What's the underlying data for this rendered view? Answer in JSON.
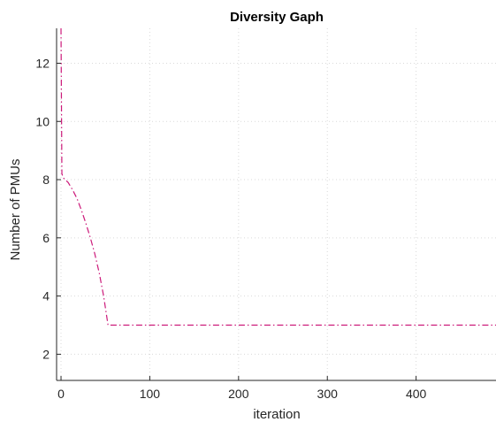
{
  "chart_data": {
    "type": "line",
    "title": "Diversity Gaph",
    "xlabel": "iteration",
    "ylabel": "Number of PMUs",
    "xlim": [
      -5,
      490
    ],
    "ylim": [
      1.1,
      13.2
    ],
    "xticks": [
      0,
      100,
      200,
      300,
      400
    ],
    "yticks": [
      2,
      4,
      6,
      8,
      10,
      12
    ],
    "grid": true,
    "grid_style": "dotted",
    "series": [
      {
        "color": "#cc1a7a",
        "line_style": "dash-dot",
        "x": [
          0,
          1,
          3,
          8,
          13,
          18,
          23,
          28,
          33,
          38,
          43,
          48,
          53,
          100,
          200,
          300,
          400,
          490
        ],
        "y": [
          13.2,
          8.2,
          8.05,
          7.9,
          7.65,
          7.35,
          6.95,
          6.5,
          6.0,
          5.45,
          4.8,
          4.0,
          3.0,
          3.0,
          3.0,
          3.0,
          3.0,
          3.0
        ]
      }
    ]
  }
}
